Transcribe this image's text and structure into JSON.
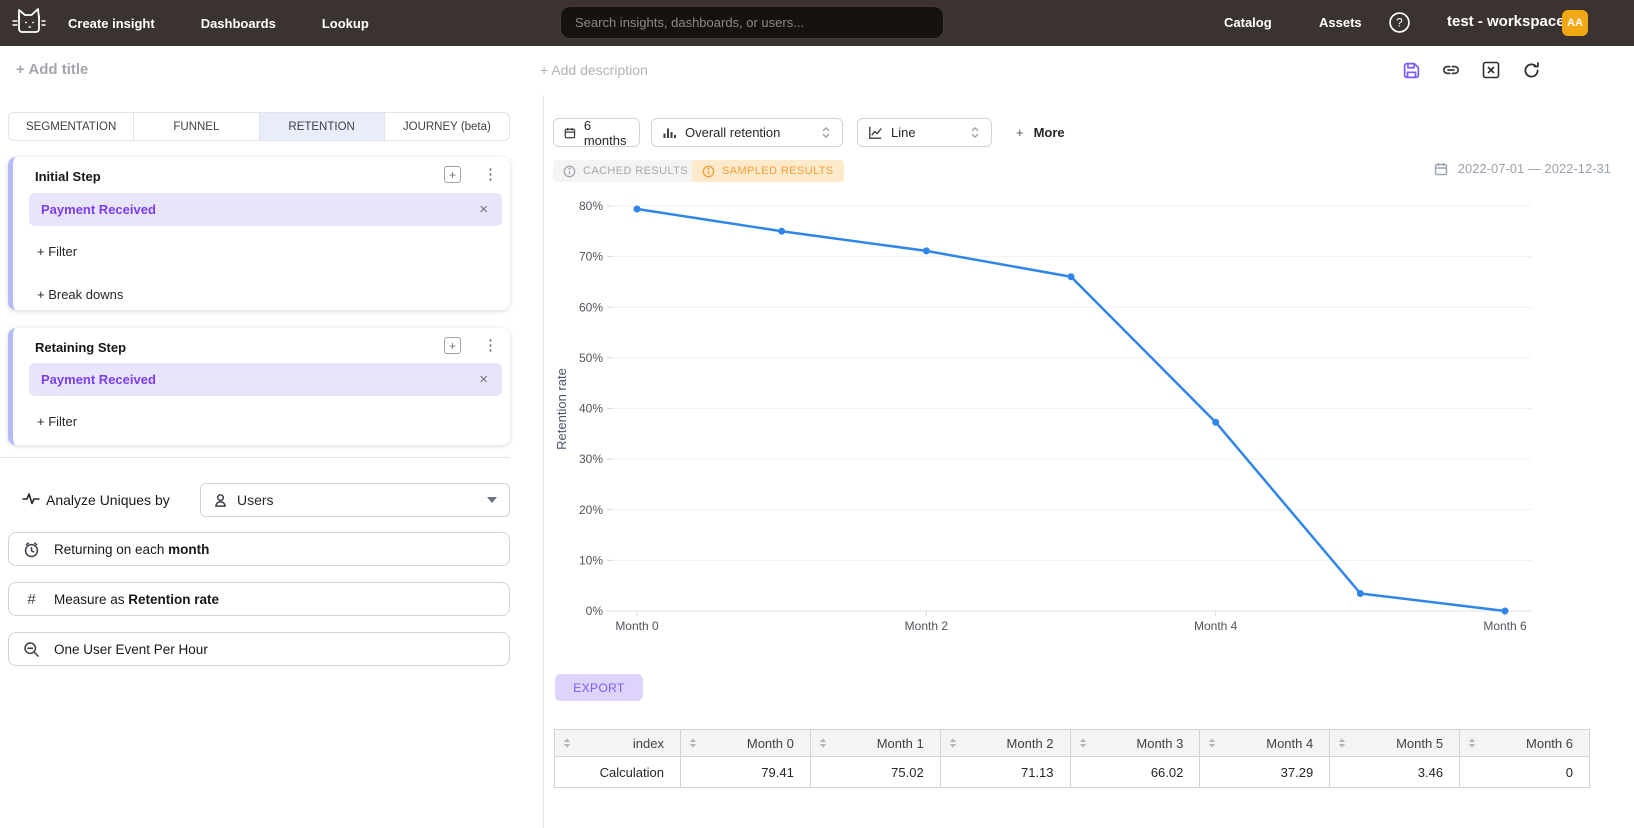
{
  "topnav": {
    "nav_items": [
      "Create insight",
      "Dashboards",
      "Lookup"
    ],
    "search_placeholder": "Search insights, dashboards, or users...",
    "catalog": "Catalog",
    "assets": "Assets",
    "workspace_name": "test - workspace",
    "avatar_initials": "AA"
  },
  "titlebar": {
    "add_title": "+ Add title",
    "add_description": "+ Add description"
  },
  "sidebar": {
    "tabs": [
      {
        "label": "SEGMENTATION",
        "active": false
      },
      {
        "label": "FUNNEL",
        "active": false
      },
      {
        "label": "RETENTION",
        "active": true
      },
      {
        "label": "JOURNEY (beta)",
        "active": false
      }
    ],
    "initial_step": {
      "title": "Initial Step",
      "event": "Payment Received",
      "add_filter": "+ Filter",
      "add_breakdowns": "+ Break downs"
    },
    "retaining_step": {
      "title": "Retaining Step",
      "event": "Payment Received",
      "add_filter": "+ Filter"
    },
    "analyze": {
      "label": "Analyze Uniques by",
      "value": "Users"
    },
    "options": [
      {
        "prefix": "Returning on each ",
        "bold": "month"
      },
      {
        "prefix": "Measure as ",
        "bold": "Retention rate"
      },
      {
        "prefix": "One User Event Per Hour",
        "bold": ""
      }
    ]
  },
  "toolbar": {
    "date_window": "6 months",
    "retention_type": "Overall retention",
    "chart_type": "Line",
    "more_plus": "+",
    "more_label": "More"
  },
  "results": {
    "cached_badge": "CACHED RESULTS",
    "sampled_badge": "SAMPLED RESULTS",
    "date_range": "2022-07-01 — 2022-12-31",
    "export_label": "EXPORT"
  },
  "chart_data": {
    "type": "line",
    "x": [
      "Month 0",
      "Month 1",
      "Month 2",
      "Month 3",
      "Month 4",
      "Month 5",
      "Month 6"
    ],
    "values": [
      79.41,
      75.02,
      71.13,
      66.02,
      37.29,
      3.46,
      0
    ],
    "ylabel": "Retention rate",
    "yticks_percent": [
      0,
      10,
      20,
      30,
      40,
      50,
      60,
      70,
      80
    ],
    "x_tick_indices": [
      0,
      2,
      4,
      6
    ],
    "ylim": [
      0,
      84
    ],
    "grid": true,
    "legend": "none",
    "line_color": "#2f86e8"
  },
  "table": {
    "columns": [
      "index",
      "Month 0",
      "Month 1",
      "Month 2",
      "Month 3",
      "Month 4",
      "Month 5",
      "Month 6"
    ],
    "rows": [
      [
        "Calculation",
        "79.41",
        "75.02",
        "71.13",
        "66.02",
        "37.29",
        "3.46",
        "0"
      ]
    ]
  }
}
